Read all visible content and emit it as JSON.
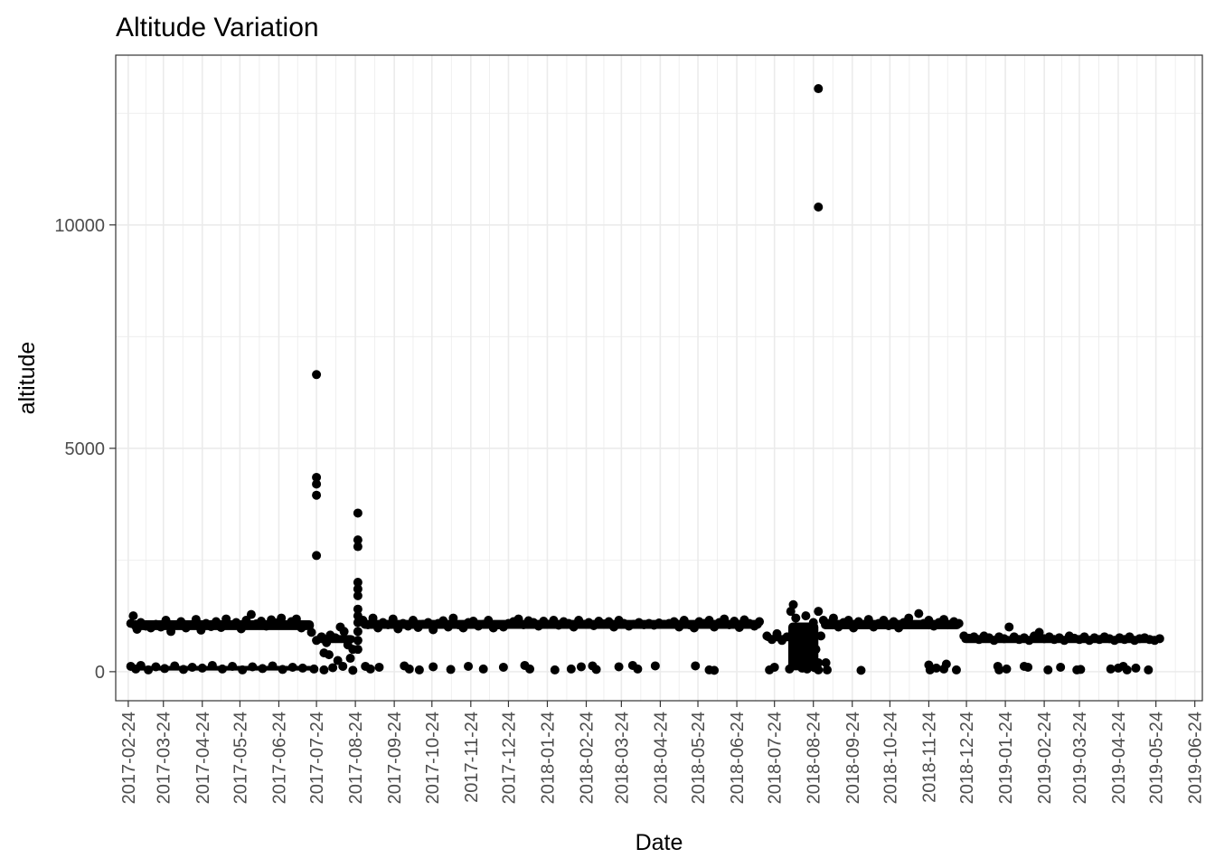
{
  "chart_data": {
    "type": "scatter",
    "title": "Altitude Variation",
    "xlabel": "Date",
    "ylabel": "altitude",
    "x_axis": "date",
    "xlim": [
      "2017-02-14",
      "2019-06-30"
    ],
    "ylim": [
      -650,
      13800
    ],
    "grid": true,
    "legend": "none",
    "colors": {
      "point": "#000000",
      "grid": "#ebebeb",
      "panel_border": "#333333",
      "tick_label": "#4d4d4d"
    },
    "x_ticks": [
      "2017-02-24",
      "2017-03-24",
      "2017-04-24",
      "2017-05-24",
      "2017-06-24",
      "2017-07-24",
      "2017-08-24",
      "2017-09-24",
      "2017-10-24",
      "2017-11-24",
      "2017-12-24",
      "2018-01-24",
      "2018-02-24",
      "2018-03-24",
      "2018-04-24",
      "2018-05-24",
      "2018-06-24",
      "2018-07-24",
      "2018-08-24",
      "2018-09-24",
      "2018-10-24",
      "2018-11-24",
      "2018-12-24",
      "2019-01-24",
      "2019-02-24",
      "2019-03-24",
      "2019-04-24",
      "2019-05-24",
      "2019-06-24"
    ],
    "y_ticks": [
      0,
      5000,
      10000
    ],
    "points": [
      [
        "2017-02-26",
        1080
      ],
      [
        "2017-02-28",
        1250
      ],
      [
        "2017-03-03",
        950
      ],
      [
        "2017-03-06",
        1100
      ],
      [
        "2017-03-10",
        1020
      ],
      [
        "2017-03-14",
        980
      ],
      [
        "2017-03-18",
        1060
      ],
      [
        "2017-03-22",
        1000
      ],
      [
        "2017-03-26",
        1150
      ],
      [
        "2017-03-30",
        900
      ],
      [
        "2017-04-03",
        1050
      ],
      [
        "2017-04-07",
        1120
      ],
      [
        "2017-04-11",
        980
      ],
      [
        "2017-04-15",
        1040
      ],
      [
        "2017-04-19",
        1170
      ],
      [
        "2017-04-23",
        930
      ],
      [
        "2017-04-27",
        1080
      ],
      [
        "2017-05-01",
        1010
      ],
      [
        "2017-05-05",
        1120
      ],
      [
        "2017-05-09",
        990
      ],
      [
        "2017-05-13",
        1180
      ],
      [
        "2017-05-17",
        1050
      ],
      [
        "2017-05-21",
        1100
      ],
      [
        "2017-05-25",
        960
      ],
      [
        "2017-05-29",
        1150
      ],
      [
        "2017-06-02",
        1280
      ],
      [
        "2017-06-06",
        1070
      ],
      [
        "2017-06-10",
        1130
      ],
      [
        "2017-06-14",
        1020
      ],
      [
        "2017-06-18",
        1160
      ],
      [
        "2017-06-22",
        1090
      ],
      [
        "2017-06-26",
        1200
      ],
      [
        "2017-06-30",
        1050
      ],
      [
        "2017-07-04",
        1120
      ],
      [
        "2017-07-08",
        1180
      ],
      [
        "2017-07-12",
        980
      ],
      [
        "2017-07-16",
        1050
      ],
      [
        "2017-07-20",
        880
      ],
      [
        "2017-02-26",
        120
      ],
      [
        "2017-03-02",
        60
      ],
      [
        "2017-03-06",
        140
      ],
      [
        "2017-03-12",
        40
      ],
      [
        "2017-03-18",
        110
      ],
      [
        "2017-03-25",
        70
      ],
      [
        "2017-04-02",
        130
      ],
      [
        "2017-04-09",
        50
      ],
      [
        "2017-04-16",
        100
      ],
      [
        "2017-04-24",
        80
      ],
      [
        "2017-05-02",
        140
      ],
      [
        "2017-05-10",
        60
      ],
      [
        "2017-05-18",
        120
      ],
      [
        "2017-05-26",
        40
      ],
      [
        "2017-06-03",
        110
      ],
      [
        "2017-06-11",
        70
      ],
      [
        "2017-06-19",
        130
      ],
      [
        "2017-06-27",
        50
      ],
      [
        "2017-07-05",
        100
      ],
      [
        "2017-07-13",
        80
      ],
      [
        "2017-07-22",
        60
      ],
      [
        "2017-07-30",
        40
      ],
      [
        "2017-08-06",
        90
      ],
      [
        "2017-08-14",
        120
      ],
      [
        "2017-08-22",
        30
      ],
      [
        "2017-07-24",
        6650
      ],
      [
        "2017-07-24",
        4350
      ],
      [
        "2017-07-24",
        4200
      ],
      [
        "2017-07-24",
        3950
      ],
      [
        "2017-07-24",
        2600
      ],
      [
        "2017-07-24",
        700
      ],
      [
        "2017-07-28",
        780
      ],
      [
        "2017-08-01",
        650
      ],
      [
        "2017-08-04",
        820
      ],
      [
        "2017-08-08",
        760
      ],
      [
        "2017-08-12",
        1000
      ],
      [
        "2017-08-15",
        900
      ],
      [
        "2017-08-18",
        600
      ],
      [
        "2017-08-20",
        300
      ],
      [
        "2017-08-22",
        500
      ],
      [
        "2017-07-30",
        420
      ],
      [
        "2017-08-03",
        380
      ],
      [
        "2017-08-10",
        250
      ],
      [
        "2017-08-26",
        3550
      ],
      [
        "2017-08-26",
        2950
      ],
      [
        "2017-08-26",
        2800
      ],
      [
        "2017-08-26",
        2000
      ],
      [
        "2017-08-26",
        1850
      ],
      [
        "2017-08-26",
        1700
      ],
      [
        "2017-08-26",
        1400
      ],
      [
        "2017-08-26",
        1250
      ],
      [
        "2017-08-26",
        1100
      ],
      [
        "2017-08-26",
        900
      ],
      [
        "2017-08-26",
        700
      ],
      [
        "2017-08-26",
        500
      ],
      [
        "2017-08-30",
        1150
      ],
      [
        "2017-09-03",
        1050
      ],
      [
        "2017-09-07",
        1200
      ],
      [
        "2017-09-11",
        980
      ],
      [
        "2017-09-15",
        1100
      ],
      [
        "2017-09-19",
        1050
      ],
      [
        "2017-09-23",
        1180
      ],
      [
        "2017-09-27",
        960
      ],
      [
        "2017-10-01",
        1080
      ],
      [
        "2017-10-05",
        1020
      ],
      [
        "2017-10-09",
        1150
      ],
      [
        "2017-10-13",
        990
      ],
      [
        "2017-10-17",
        1060
      ],
      [
        "2017-10-21",
        1100
      ],
      [
        "2017-10-25",
        940
      ],
      [
        "2017-10-29",
        1080
      ],
      [
        "2017-11-02",
        1140
      ],
      [
        "2017-11-06",
        1000
      ],
      [
        "2017-11-10",
        1200
      ],
      [
        "2017-11-14",
        1050
      ],
      [
        "2017-11-18",
        980
      ],
      [
        "2017-11-22",
        1100
      ],
      [
        "2017-11-26",
        1130
      ],
      [
        "2017-11-30",
        1020
      ],
      [
        "2017-12-04",
        1060
      ],
      [
        "2017-12-08",
        1150
      ],
      [
        "2017-12-12",
        980
      ],
      [
        "2017-12-16",
        1050
      ],
      [
        "2017-12-20",
        1000
      ],
      [
        "2017-12-24",
        1080
      ],
      [
        "2017-12-28",
        1120
      ],
      [
        "2018-01-01",
        1180
      ],
      [
        "2018-01-05",
        1050
      ],
      [
        "2018-01-09",
        1140
      ],
      [
        "2018-01-13",
        1100
      ],
      [
        "2018-01-17",
        1020
      ],
      [
        "2018-01-21",
        1130
      ],
      [
        "2018-01-25",
        1060
      ],
      [
        "2018-01-29",
        1150
      ],
      [
        "2018-02-02",
        1040
      ],
      [
        "2018-02-06",
        1120
      ],
      [
        "2018-02-10",
        1080
      ],
      [
        "2018-02-14",
        1000
      ],
      [
        "2018-02-18",
        1150
      ],
      [
        "2018-02-22",
        1060
      ],
      [
        "2018-02-26",
        1100
      ],
      [
        "2018-03-02",
        1030
      ],
      [
        "2018-03-06",
        1130
      ],
      [
        "2018-03-10",
        1070
      ],
      [
        "2018-03-14",
        1120
      ],
      [
        "2018-03-18",
        1000
      ],
      [
        "2018-03-22",
        1150
      ],
      [
        "2018-03-26",
        1080
      ],
      [
        "2018-03-30",
        1020
      ],
      [
        "2018-04-03",
        1060
      ],
      [
        "2018-04-07",
        1100
      ],
      [
        "2018-04-11",
        1050
      ],
      [
        "2018-04-15",
        1080
      ],
      [
        "2018-04-19",
        1040
      ],
      [
        "2018-04-23",
        1090
      ],
      [
        "2018-04-27",
        1060
      ],
      [
        "2018-05-01",
        1080
      ],
      [
        "2018-05-05",
        1120
      ],
      [
        "2018-05-09",
        1000
      ],
      [
        "2018-05-13",
        1150
      ],
      [
        "2018-05-17",
        1050
      ],
      [
        "2018-05-21",
        980
      ],
      [
        "2018-05-25",
        1120
      ],
      [
        "2018-05-29",
        1080
      ],
      [
        "2018-06-02",
        1150
      ],
      [
        "2018-06-06",
        1000
      ],
      [
        "2018-06-10",
        1100
      ],
      [
        "2018-06-14",
        1180
      ],
      [
        "2018-06-18",
        1050
      ],
      [
        "2018-06-22",
        1130
      ],
      [
        "2018-06-26",
        990
      ],
      [
        "2018-06-30",
        1160
      ],
      [
        "2018-07-04",
        1080
      ],
      [
        "2018-07-08",
        1020
      ],
      [
        "2018-07-12",
        1120
      ],
      [
        "2017-09-01",
        120
      ],
      [
        "2017-09-05",
        60
      ],
      [
        "2017-09-12",
        100
      ],
      [
        "2017-10-02",
        130
      ],
      [
        "2017-10-06",
        60
      ],
      [
        "2017-10-14",
        40
      ],
      [
        "2017-10-25",
        110
      ],
      [
        "2017-11-08",
        50
      ],
      [
        "2017-11-22",
        120
      ],
      [
        "2017-12-04",
        60
      ],
      [
        "2017-12-20",
        100
      ],
      [
        "2018-01-06",
        140
      ],
      [
        "2018-01-10",
        60
      ],
      [
        "2018-01-30",
        40
      ],
      [
        "2018-02-12",
        60
      ],
      [
        "2018-02-20",
        110
      ],
      [
        "2018-03-01",
        130
      ],
      [
        "2018-03-04",
        50
      ],
      [
        "2018-03-22",
        110
      ],
      [
        "2018-04-02",
        140
      ],
      [
        "2018-04-06",
        60
      ],
      [
        "2018-04-20",
        130
      ],
      [
        "2018-05-22",
        130
      ],
      [
        "2018-06-02",
        40
      ],
      [
        "2018-06-06",
        30
      ],
      [
        "2018-07-20",
        40
      ],
      [
        "2018-07-24",
        100
      ],
      [
        "2018-07-18",
        800
      ],
      [
        "2018-07-22",
        720
      ],
      [
        "2018-07-26",
        850
      ],
      [
        "2018-07-30",
        700
      ],
      [
        "2018-08-03",
        780
      ],
      [
        "2018-08-06",
        1350
      ],
      [
        "2018-08-08",
        1500
      ],
      [
        "2018-08-10",
        1200
      ],
      [
        "2018-08-12",
        600
      ],
      [
        "2018-08-14",
        900
      ],
      [
        "2018-08-16",
        400
      ],
      [
        "2018-08-18",
        1250
      ],
      [
        "2018-08-20",
        700
      ],
      [
        "2018-08-22",
        300
      ],
      [
        "2018-08-24",
        1100
      ],
      [
        "2018-08-26",
        500
      ],
      [
        "2018-08-28",
        200
      ],
      [
        "2018-08-12",
        150
      ],
      [
        "2018-08-15",
        80
      ],
      [
        "2018-08-19",
        60
      ],
      [
        "2018-08-22",
        180
      ],
      [
        "2018-08-25",
        90
      ],
      [
        "2018-08-28",
        40
      ],
      [
        "2018-08-10",
        1000
      ],
      [
        "2018-08-05",
        60
      ],
      [
        "2018-08-30",
        800
      ],
      [
        "2018-08-28",
        13050
      ],
      [
        "2018-08-28",
        10400
      ],
      [
        "2018-08-28",
        1350
      ],
      [
        "2018-09-01",
        1150
      ],
      [
        "2018-09-05",
        1080
      ],
      [
        "2018-09-09",
        1200
      ],
      [
        "2018-09-13",
        1000
      ],
      [
        "2018-09-17",
        1100
      ],
      [
        "2018-09-21",
        1150
      ],
      [
        "2018-09-25",
        980
      ],
      [
        "2018-09-29",
        1120
      ],
      [
        "2018-10-03",
        1050
      ],
      [
        "2018-10-07",
        1170
      ],
      [
        "2018-10-11",
        1000
      ],
      [
        "2018-10-15",
        1080
      ],
      [
        "2018-10-19",
        1150
      ],
      [
        "2018-10-23",
        1030
      ],
      [
        "2018-10-27",
        1120
      ],
      [
        "2018-10-31",
        980
      ],
      [
        "2018-11-04",
        1100
      ],
      [
        "2018-11-08",
        1200
      ],
      [
        "2018-11-12",
        1050
      ],
      [
        "2018-11-16",
        1300
      ],
      [
        "2018-11-20",
        1080
      ],
      [
        "2018-11-24",
        1150
      ],
      [
        "2018-11-28",
        1020
      ],
      [
        "2018-12-02",
        1100
      ],
      [
        "2018-12-06",
        1170
      ],
      [
        "2018-12-10",
        1050
      ],
      [
        "2018-12-14",
        1120
      ],
      [
        "2018-12-18",
        1080
      ],
      [
        "2018-09-03",
        200
      ],
      [
        "2018-09-04",
        40
      ],
      [
        "2018-10-01",
        30
      ],
      [
        "2018-11-24",
        150
      ],
      [
        "2018-11-25",
        40
      ],
      [
        "2018-11-30",
        80
      ],
      [
        "2018-12-06",
        60
      ],
      [
        "2018-12-08",
        170
      ],
      [
        "2018-12-16",
        40
      ],
      [
        "2019-01-18",
        120
      ],
      [
        "2019-01-19",
        40
      ],
      [
        "2019-01-25",
        60
      ],
      [
        "2019-02-08",
        120
      ],
      [
        "2019-02-11",
        100
      ],
      [
        "2019-02-27",
        40
      ],
      [
        "2019-03-09",
        100
      ],
      [
        "2019-03-22",
        40
      ],
      [
        "2019-03-25",
        50
      ],
      [
        "2019-04-18",
        60
      ],
      [
        "2019-04-24",
        80
      ],
      [
        "2019-04-28",
        120
      ],
      [
        "2019-05-01",
        40
      ],
      [
        "2019-05-08",
        80
      ],
      [
        "2019-05-18",
        40
      ],
      [
        "2018-12-22",
        800
      ],
      [
        "2018-12-26",
        750
      ],
      [
        "2018-12-30",
        780
      ],
      [
        "2019-01-03",
        720
      ],
      [
        "2019-01-07",
        800
      ],
      [
        "2019-01-11",
        760
      ],
      [
        "2019-01-15",
        700
      ],
      [
        "2019-01-19",
        780
      ],
      [
        "2019-01-23",
        740
      ],
      [
        "2019-01-27",
        1000
      ],
      [
        "2019-01-31",
        780
      ],
      [
        "2019-02-04",
        720
      ],
      [
        "2019-02-08",
        760
      ],
      [
        "2019-02-12",
        700
      ],
      [
        "2019-02-16",
        800
      ],
      [
        "2019-02-20",
        880
      ],
      [
        "2019-02-24",
        740
      ],
      [
        "2019-02-28",
        780
      ],
      [
        "2019-03-04",
        720
      ],
      [
        "2019-03-08",
        760
      ],
      [
        "2019-03-12",
        700
      ],
      [
        "2019-03-16",
        800
      ],
      [
        "2019-03-20",
        750
      ],
      [
        "2019-03-24",
        720
      ],
      [
        "2019-03-28",
        780
      ],
      [
        "2019-04-01",
        700
      ],
      [
        "2019-04-05",
        760
      ],
      [
        "2019-04-09",
        720
      ],
      [
        "2019-04-13",
        780
      ],
      [
        "2019-04-17",
        740
      ],
      [
        "2019-04-21",
        700
      ],
      [
        "2019-04-25",
        760
      ],
      [
        "2019-04-29",
        720
      ],
      [
        "2019-05-03",
        780
      ],
      [
        "2019-05-07",
        700
      ],
      [
        "2019-05-11",
        740
      ],
      [
        "2019-05-15",
        760
      ],
      [
        "2019-05-19",
        720
      ],
      [
        "2019-05-23",
        700
      ],
      [
        "2019-05-27",
        740
      ]
    ]
  }
}
